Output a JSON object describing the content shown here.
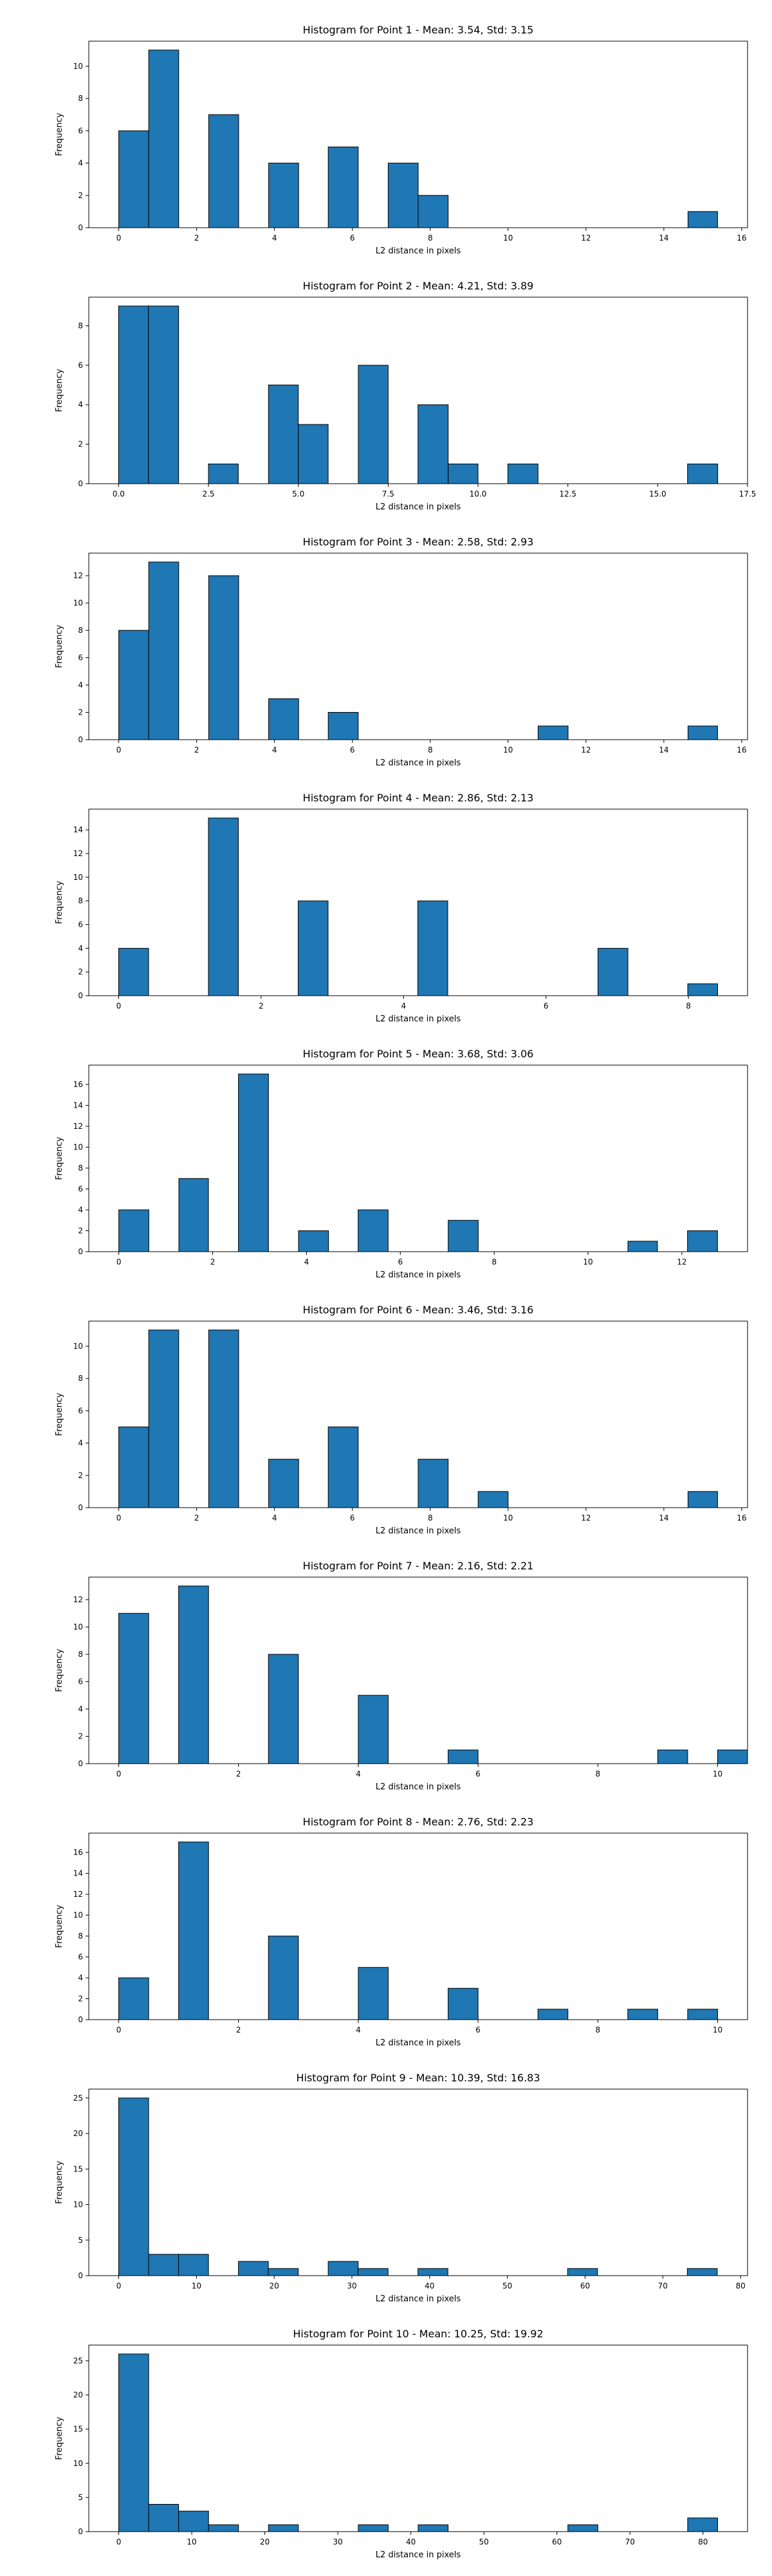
{
  "chart_data": [
    {
      "type": "bar",
      "title": "Histogram for Point 1 - Mean: 3.54, Std: 3.15",
      "xlabel": "L2 distance in pixels",
      "ylabel": "Frequency",
      "xlim": [
        -0.77,
        16.15
      ],
      "ylim": [
        0,
        11.55
      ],
      "xticks": [
        0,
        2,
        4,
        6,
        8,
        10,
        12,
        14,
        16
      ],
      "xtick_labels": [
        "0",
        "2",
        "4",
        "6",
        "8",
        "10",
        "12",
        "14",
        "16"
      ],
      "yticks": [
        0,
        2,
        4,
        6,
        8,
        10
      ],
      "ytick_labels": [
        "0",
        "2",
        "4",
        "6",
        "8",
        "10"
      ],
      "bins": [
        {
          "x0": 0.0,
          "x1": 0.77,
          "value": 6
        },
        {
          "x0": 0.77,
          "x1": 1.54,
          "value": 11
        },
        {
          "x0": 2.31,
          "x1": 3.08,
          "value": 7
        },
        {
          "x0": 3.85,
          "x1": 4.62,
          "value": 4
        },
        {
          "x0": 5.38,
          "x1": 6.15,
          "value": 5
        },
        {
          "x0": 6.92,
          "x1": 7.69,
          "value": 4
        },
        {
          "x0": 7.69,
          "x1": 8.46,
          "value": 2
        },
        {
          "x0": 14.62,
          "x1": 15.38,
          "value": 1
        }
      ]
    },
    {
      "type": "bar",
      "title": "Histogram for Point 2 - Mean: 4.21, Std: 3.89",
      "xlabel": "L2 distance in pixels",
      "ylabel": "Frequency",
      "xlim": [
        -0.83,
        17.5
      ],
      "ylim": [
        0,
        9.45
      ],
      "xticks": [
        0,
        2.5,
        5,
        7.5,
        10,
        12.5,
        15,
        17.5
      ],
      "xtick_labels": [
        "0.0",
        "2.5",
        "5.0",
        "7.5",
        "10.0",
        "12.5",
        "15.0",
        "17.5"
      ],
      "yticks": [
        0,
        2,
        4,
        6,
        8
      ],
      "ytick_labels": [
        "0",
        "2",
        "4",
        "6",
        "8"
      ],
      "bins": [
        {
          "x0": 0.0,
          "x1": 0.83,
          "value": 9
        },
        {
          "x0": 0.83,
          "x1": 1.67,
          "value": 9
        },
        {
          "x0": 2.5,
          "x1": 3.33,
          "value": 1
        },
        {
          "x0": 4.17,
          "x1": 5.0,
          "value": 5
        },
        {
          "x0": 5.0,
          "x1": 5.83,
          "value": 3
        },
        {
          "x0": 6.67,
          "x1": 7.5,
          "value": 6
        },
        {
          "x0": 8.33,
          "x1": 9.17,
          "value": 4
        },
        {
          "x0": 9.17,
          "x1": 10.0,
          "value": 1
        },
        {
          "x0": 10.83,
          "x1": 11.67,
          "value": 1
        },
        {
          "x0": 15.83,
          "x1": 16.67,
          "value": 1
        }
      ]
    },
    {
      "type": "bar",
      "title": "Histogram for Point 3 - Mean: 2.58, Std: 2.93",
      "xlabel": "L2 distance in pixels",
      "ylabel": "Frequency",
      "xlim": [
        -0.77,
        16.15
      ],
      "ylim": [
        0,
        13.65
      ],
      "xticks": [
        0,
        2,
        4,
        6,
        8,
        10,
        12,
        14,
        16
      ],
      "xtick_labels": [
        "0",
        "2",
        "4",
        "6",
        "8",
        "10",
        "12",
        "14",
        "16"
      ],
      "yticks": [
        0,
        2,
        4,
        6,
        8,
        10,
        12
      ],
      "ytick_labels": [
        "0",
        "2",
        "4",
        "6",
        "8",
        "10",
        "12"
      ],
      "bins": [
        {
          "x0": 0.0,
          "x1": 0.77,
          "value": 8
        },
        {
          "x0": 0.77,
          "x1": 1.54,
          "value": 13
        },
        {
          "x0": 2.31,
          "x1": 3.08,
          "value": 12
        },
        {
          "x0": 3.85,
          "x1": 4.62,
          "value": 3
        },
        {
          "x0": 5.38,
          "x1": 6.15,
          "value": 2
        },
        {
          "x0": 10.77,
          "x1": 11.54,
          "value": 1
        },
        {
          "x0": 14.62,
          "x1": 15.38,
          "value": 1
        }
      ]
    },
    {
      "type": "bar",
      "title": "Histogram for Point 4 - Mean: 2.86, Std: 2.13",
      "xlabel": "L2 distance in pixels",
      "ylabel": "Frequency",
      "xlim": [
        -0.42,
        8.83
      ],
      "ylim": [
        0,
        15.75
      ],
      "xticks": [
        0,
        2,
        4,
        6,
        8
      ],
      "xtick_labels": [
        "0",
        "2",
        "4",
        "6",
        "8"
      ],
      "yticks": [
        0,
        2,
        4,
        6,
        8,
        10,
        12,
        14
      ],
      "ytick_labels": [
        "0",
        "2",
        "4",
        "6",
        "8",
        "10",
        "12",
        "14"
      ],
      "bins": [
        {
          "x0": 0.0,
          "x1": 0.42,
          "value": 4
        },
        {
          "x0": 1.26,
          "x1": 1.68,
          "value": 15
        },
        {
          "x0": 2.52,
          "x1": 2.94,
          "value": 8
        },
        {
          "x0": 4.2,
          "x1": 4.62,
          "value": 8
        },
        {
          "x0": 6.73,
          "x1": 7.15,
          "value": 4
        },
        {
          "x0": 7.99,
          "x1": 8.41,
          "value": 1
        }
      ]
    },
    {
      "type": "bar",
      "title": "Histogram for Point 5 - Mean: 3.68, Std: 3.06",
      "xlabel": "L2 distance in pixels",
      "ylabel": "Frequency",
      "xlim": [
        -0.64,
        13.4
      ],
      "ylim": [
        0,
        17.85
      ],
      "xticks": [
        0,
        2,
        4,
        6,
        8,
        10,
        12
      ],
      "xtick_labels": [
        "0",
        "2",
        "4",
        "6",
        "8",
        "10",
        "12"
      ],
      "yticks": [
        0,
        2,
        4,
        6,
        8,
        10,
        12,
        14,
        16
      ],
      "ytick_labels": [
        "0",
        "2",
        "4",
        "6",
        "8",
        "10",
        "12",
        "14",
        "16"
      ],
      "bins": [
        {
          "x0": 0.0,
          "x1": 0.64,
          "value": 4
        },
        {
          "x0": 1.28,
          "x1": 1.91,
          "value": 7
        },
        {
          "x0": 2.55,
          "x1": 3.19,
          "value": 17
        },
        {
          "x0": 3.83,
          "x1": 4.47,
          "value": 2
        },
        {
          "x0": 5.1,
          "x1": 5.74,
          "value": 4
        },
        {
          "x0": 7.02,
          "x1": 7.66,
          "value": 3
        },
        {
          "x0": 10.85,
          "x1": 11.48,
          "value": 1
        },
        {
          "x0": 12.12,
          "x1": 12.76,
          "value": 2
        }
      ]
    },
    {
      "type": "bar",
      "title": "Histogram for Point 6 - Mean: 3.46, Std: 3.16",
      "xlabel": "L2 distance in pixels",
      "ylabel": "Frequency",
      "xlim": [
        -0.77,
        16.15
      ],
      "ylim": [
        0,
        11.55
      ],
      "xticks": [
        0,
        2,
        4,
        6,
        8,
        10,
        12,
        14,
        16
      ],
      "xtick_labels": [
        "0",
        "2",
        "4",
        "6",
        "8",
        "10",
        "12",
        "14",
        "16"
      ],
      "yticks": [
        0,
        2,
        4,
        6,
        8,
        10
      ],
      "ytick_labels": [
        "0",
        "2",
        "4",
        "6",
        "8",
        "10"
      ],
      "bins": [
        {
          "x0": 0.0,
          "x1": 0.77,
          "value": 5
        },
        {
          "x0": 0.77,
          "x1": 1.54,
          "value": 11
        },
        {
          "x0": 2.31,
          "x1": 3.08,
          "value": 11
        },
        {
          "x0": 3.85,
          "x1": 4.62,
          "value": 3
        },
        {
          "x0": 5.38,
          "x1": 6.15,
          "value": 5
        },
        {
          "x0": 7.69,
          "x1": 8.46,
          "value": 3
        },
        {
          "x0": 9.23,
          "x1": 10.0,
          "value": 1
        },
        {
          "x0": 14.62,
          "x1": 15.38,
          "value": 1
        }
      ]
    },
    {
      "type": "bar",
      "title": "Histogram for Point 7 - Mean: 2.16, Std: 2.21",
      "xlabel": "L2 distance in pixels",
      "ylabel": "Frequency",
      "xlim": [
        -0.5,
        10.5
      ],
      "ylim": [
        0,
        13.65
      ],
      "xticks": [
        0,
        2,
        4,
        6,
        8,
        10
      ],
      "xtick_labels": [
        "0",
        "2",
        "4",
        "6",
        "8",
        "10"
      ],
      "yticks": [
        0,
        2,
        4,
        6,
        8,
        10,
        12
      ],
      "ytick_labels": [
        "0",
        "2",
        "4",
        "6",
        "8",
        "10",
        "12"
      ],
      "bins": [
        {
          "x0": 0.0,
          "x1": 0.5,
          "value": 11
        },
        {
          "x0": 1.0,
          "x1": 1.5,
          "value": 13
        },
        {
          "x0": 2.5,
          "x1": 3.0,
          "value": 8
        },
        {
          "x0": 4.0,
          "x1": 4.5,
          "value": 5
        },
        {
          "x0": 5.5,
          "x1": 6.0,
          "value": 1
        },
        {
          "x0": 9.0,
          "x1": 9.5,
          "value": 1
        },
        {
          "x0": 10.0,
          "x1": 10.5,
          "value": 1
        }
      ]
    },
    {
      "type": "bar",
      "title": "Histogram for Point 8 - Mean: 2.76, Std: 2.23",
      "xlabel": "L2 distance in pixels",
      "ylabel": "Frequency",
      "xlim": [
        -0.5,
        10.5
      ],
      "ylim": [
        0,
        17.85
      ],
      "xticks": [
        0,
        2,
        4,
        6,
        8,
        10
      ],
      "xtick_labels": [
        "0",
        "2",
        "4",
        "6",
        "8",
        "10"
      ],
      "yticks": [
        0,
        2,
        4,
        6,
        8,
        10,
        12,
        14,
        16
      ],
      "ytick_labels": [
        "0",
        "2",
        "4",
        "6",
        "8",
        "10",
        "12",
        "14",
        "16"
      ],
      "bins": [
        {
          "x0": 0.0,
          "x1": 0.5,
          "value": 4
        },
        {
          "x0": 1.0,
          "x1": 1.5,
          "value": 17
        },
        {
          "x0": 2.5,
          "x1": 3.0,
          "value": 8
        },
        {
          "x0": 4.0,
          "x1": 4.5,
          "value": 5
        },
        {
          "x0": 5.5,
          "x1": 6.0,
          "value": 3
        },
        {
          "x0": 7.0,
          "x1": 7.5,
          "value": 1
        },
        {
          "x0": 8.5,
          "x1": 9.0,
          "value": 1
        },
        {
          "x0": 9.5,
          "x1": 10.0,
          "value": 1
        }
      ]
    },
    {
      "type": "bar",
      "title": "Histogram for Point 9 - Mean: 10.39, Std: 16.83",
      "xlabel": "L2 distance in pixels",
      "ylabel": "Frequency",
      "xlim": [
        -3.85,
        80.9
      ],
      "ylim": [
        0,
        26.25
      ],
      "xticks": [
        0,
        10,
        20,
        30,
        40,
        50,
        60,
        70,
        80
      ],
      "xtick_labels": [
        "0",
        "10",
        "20",
        "30",
        "40",
        "50",
        "60",
        "70",
        "80"
      ],
      "yticks": [
        0,
        5,
        10,
        15,
        20,
        25
      ],
      "ytick_labels": [
        "0",
        "5",
        "10",
        "15",
        "20",
        "25"
      ],
      "bins": [
        {
          "x0": 0.0,
          "x1": 3.85,
          "value": 25
        },
        {
          "x0": 3.85,
          "x1": 7.7,
          "value": 3
        },
        {
          "x0": 7.7,
          "x1": 11.55,
          "value": 3
        },
        {
          "x0": 15.4,
          "x1": 19.25,
          "value": 2
        },
        {
          "x0": 19.25,
          "x1": 23.1,
          "value": 1
        },
        {
          "x0": 26.95,
          "x1": 30.8,
          "value": 2
        },
        {
          "x0": 30.8,
          "x1": 34.65,
          "value": 1
        },
        {
          "x0": 38.5,
          "x1": 42.35,
          "value": 1
        },
        {
          "x0": 57.75,
          "x1": 61.6,
          "value": 1
        },
        {
          "x0": 73.15,
          "x1": 77.0,
          "value": 1
        }
      ]
    },
    {
      "type": "bar",
      "title": "Histogram for Point 10 - Mean: 10.25, Std: 19.92",
      "xlabel": "L2 distance in pixels",
      "ylabel": "Frequency",
      "xlim": [
        -4.1,
        86.1
      ],
      "ylim": [
        0,
        27.3
      ],
      "xticks": [
        0,
        10,
        20,
        30,
        40,
        50,
        60,
        70,
        80
      ],
      "xtick_labels": [
        "0",
        "10",
        "20",
        "30",
        "40",
        "50",
        "60",
        "70",
        "80"
      ],
      "yticks": [
        0,
        5,
        10,
        15,
        20,
        25
      ],
      "ytick_labels": [
        "0",
        "5",
        "10",
        "15",
        "20",
        "25"
      ],
      "bins": [
        {
          "x0": 0.0,
          "x1": 4.1,
          "value": 26
        },
        {
          "x0": 4.1,
          "x1": 8.2,
          "value": 4
        },
        {
          "x0": 8.2,
          "x1": 12.3,
          "value": 3
        },
        {
          "x0": 12.3,
          "x1": 16.4,
          "value": 1
        },
        {
          "x0": 20.5,
          "x1": 24.6,
          "value": 1
        },
        {
          "x0": 32.8,
          "x1": 36.9,
          "value": 1
        },
        {
          "x0": 41.0,
          "x1": 45.1,
          "value": 1
        },
        {
          "x0": 61.5,
          "x1": 65.6,
          "value": 1
        },
        {
          "x0": 77.9,
          "x1": 82.0,
          "value": 2
        }
      ]
    }
  ],
  "colors": {
    "bar_fill": "#1f77b4",
    "bar_edge": "#000000",
    "axes": "#000000",
    "background": "#ffffff"
  }
}
